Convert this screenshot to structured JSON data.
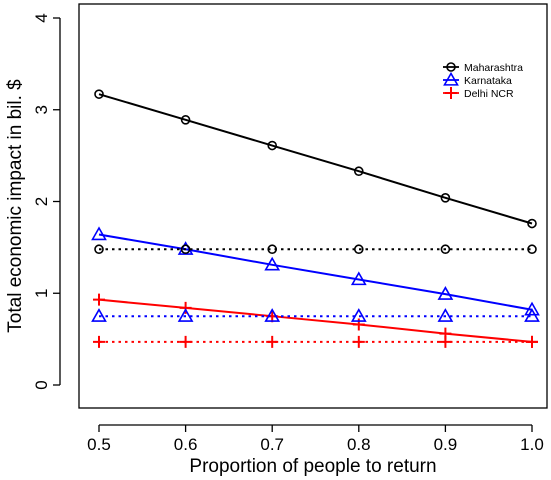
{
  "chart_data": {
    "type": "line",
    "title": "",
    "xlabel": "Proportion of people to return",
    "ylabel": "Total economic impact in bil. $",
    "x": [
      0.5,
      0.6,
      0.7,
      0.8,
      0.9,
      1.0
    ],
    "xticks": [
      "0.5",
      "0.6",
      "0.7",
      "0.8",
      "0.9",
      "1.0"
    ],
    "yticks": [
      "0",
      "1",
      "2",
      "3",
      "4"
    ],
    "xlim": [
      0.5,
      1.0
    ],
    "ylim": [
      0,
      4
    ],
    "grid": false,
    "legend_position": "top-right",
    "series": [
      {
        "name": "Maharashtra",
        "color": "#000000",
        "marker": "circle",
        "line": "solid",
        "values": [
          3.17,
          2.89,
          2.61,
          2.33,
          2.04,
          1.76
        ]
      },
      {
        "name": "Karnataka",
        "color": "#0000ff",
        "marker": "triangle",
        "line": "solid",
        "values": [
          1.64,
          1.48,
          1.31,
          1.15,
          0.99,
          0.82
        ]
      },
      {
        "name": "Delhi NCR",
        "color": "#ff0000",
        "marker": "plus",
        "line": "solid",
        "values": [
          0.93,
          0.84,
          0.75,
          0.66,
          0.56,
          0.47
        ]
      },
      {
        "color": "#000000",
        "marker": "circle",
        "line": "dotted",
        "values": [
          1.48,
          1.48,
          1.48,
          1.48,
          1.48,
          1.48
        ]
      },
      {
        "color": "#0000ff",
        "marker": "triangle",
        "line": "dotted",
        "values": [
          0.75,
          0.75,
          0.75,
          0.75,
          0.75,
          0.75
        ]
      },
      {
        "color": "#ff0000",
        "marker": "plus",
        "line": "dotted",
        "values": [
          0.47,
          0.47,
          0.47,
          0.47,
          0.47,
          0.47
        ]
      }
    ]
  }
}
